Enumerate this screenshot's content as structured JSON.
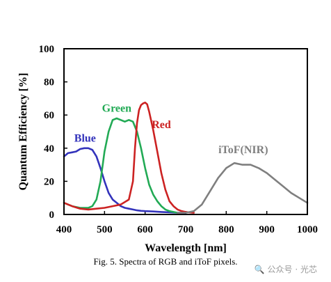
{
  "chart_data": {
    "type": "line",
    "caption": "Fig. 5. Spectra of RGB and iToF pixels.",
    "xlabel": "Wavelength [nm]",
    "ylabel": "Quantum Efficiency [%]",
    "xlim": [
      400,
      1000
    ],
    "ylim": [
      0,
      100
    ],
    "xticks": [
      "400",
      "500",
      "600",
      "700",
      "800",
      "900",
      "1000"
    ],
    "yticks": [
      "0",
      "20",
      "40",
      "60",
      "80",
      "100"
    ],
    "grid": false,
    "series": [
      {
        "name": "Blue",
        "color": "#3333bb",
        "x": [
          400,
          410,
          420,
          430,
          440,
          450,
          460,
          470,
          480,
          490,
          500,
          510,
          520,
          530,
          540,
          550,
          560,
          570,
          580,
          590,
          600,
          620,
          640,
          660,
          680,
          700
        ],
        "y": [
          35,
          37,
          37.5,
          38,
          39.5,
          40,
          40,
          39,
          35,
          28,
          20,
          13,
          9,
          7,
          5,
          4,
          3.5,
          3,
          2.5,
          2.2,
          2,
          1.8,
          1.5,
          1.3,
          1.1,
          1
        ]
      },
      {
        "name": "Green",
        "color": "#22aa55",
        "x": [
          400,
          420,
          440,
          460,
          470,
          480,
          490,
          500,
          510,
          520,
          530,
          540,
          550,
          560,
          570,
          580,
          590,
          600,
          610,
          620,
          630,
          640,
          650,
          660,
          670,
          680
        ],
        "y": [
          7,
          5,
          4,
          4,
          5,
          9,
          20,
          38,
          50,
          57,
          58,
          57,
          56,
          57,
          56,
          50,
          40,
          28,
          18,
          12,
          8,
          5,
          3,
          2,
          1.5,
          1
        ]
      },
      {
        "name": "Red",
        "color": "#cc2222",
        "x": [
          400,
          420,
          440,
          460,
          480,
          500,
          520,
          540,
          560,
          570,
          575,
          580,
          585,
          590,
          595,
          600,
          605,
          610,
          620,
          630,
          640,
          650,
          660,
          670,
          680,
          690,
          700,
          720
        ],
        "y": [
          7,
          5,
          3.5,
          3,
          3.5,
          4,
          5,
          6,
          9,
          20,
          40,
          55,
          63,
          66,
          67,
          67.5,
          66.5,
          62,
          51,
          38,
          25,
          15,
          8,
          5,
          3,
          2,
          1.5,
          1
        ]
      },
      {
        "name": "iToF(NIR)",
        "color": "#7f7f7f",
        "x": [
          680,
          700,
          720,
          740,
          760,
          780,
          800,
          820,
          840,
          860,
          880,
          900,
          920,
          940,
          960,
          980,
          1000
        ],
        "y": [
          1,
          1,
          2,
          6,
          14,
          22,
          28,
          31,
          30,
          30,
          28,
          25,
          21,
          17,
          13,
          10,
          7
        ]
      }
    ]
  }
}
